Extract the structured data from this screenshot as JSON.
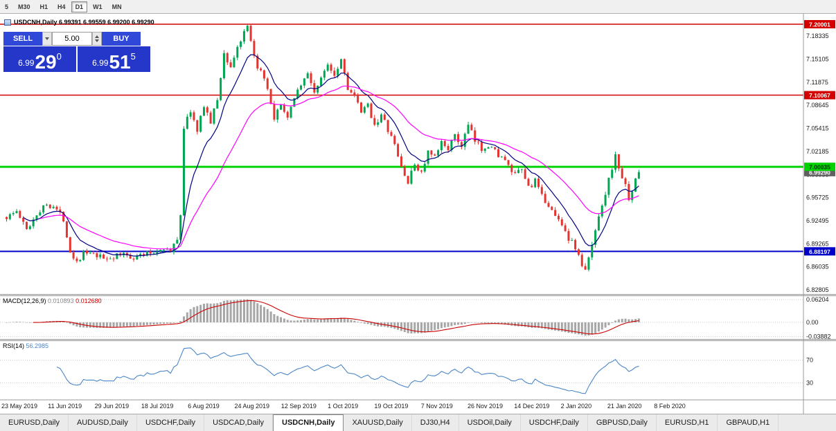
{
  "toolbar": {
    "timeframes": [
      {
        "label": "5",
        "active": false
      },
      {
        "label": "M30",
        "active": false
      },
      {
        "label": "H1",
        "active": false
      },
      {
        "label": "H4",
        "active": false
      },
      {
        "label": "D1",
        "active": true
      },
      {
        "label": "W1",
        "active": false
      },
      {
        "label": "MN",
        "active": false
      }
    ]
  },
  "chart": {
    "title_line": "USDCNH,Daily 6.99391 6.99559 6.99200 6.99290"
  },
  "trade_panel": {
    "sell_label": "SELL",
    "buy_label": "BUY",
    "volume": "5.00",
    "sell_price": {
      "prefix": "6.99",
      "big": "29",
      "sup": "0"
    },
    "buy_price": {
      "prefix": "6.99",
      "big": "51",
      "sup": "5"
    }
  },
  "indicators": {
    "macd_label": "MACD(12,26,9)",
    "macd_main": "0.010893",
    "macd_signal": "0.012680",
    "rsi_label": "RSI(14)",
    "rsi_value": "56.2985"
  },
  "chart_data": {
    "type": "candlestick",
    "symbol": "USDCNH",
    "timeframe": "Daily",
    "ohlc_display": [
      "6.99391",
      "6.99559",
      "6.99200",
      "6.99290"
    ],
    "last_close": 6.9929,
    "levels": [
      {
        "price": 7.20001,
        "label": "7.20001",
        "color": "#d40000",
        "width": 1.5,
        "text": "#ffffff"
      },
      {
        "price": 7.10067,
        "label": "7.10067",
        "color": "#d40000",
        "width": 1.5,
        "text": "#ffffff"
      },
      {
        "price": 7.00035,
        "label": "7.00035",
        "color": "#00d100",
        "width": 3,
        "text": "#00320a"
      },
      {
        "price": 6.88197,
        "label": "6.88197",
        "color": "#0000c8",
        "width": 2,
        "text": "#ffffff"
      }
    ],
    "current_price_badge": {
      "price": 6.9929,
      "label": "6.99290",
      "color": "#606060"
    },
    "y_ticks": [
      "7.18335",
      "7.15105",
      "7.11875",
      "7.08645",
      "7.05415",
      "7.02185",
      "6.98955",
      "6.95725",
      "6.92495",
      "6.89265",
      "6.86035",
      "6.82805"
    ],
    "y_tick_values": [
      7.18335,
      7.15105,
      7.11875,
      7.08645,
      7.05415,
      7.02185,
      6.98955,
      6.95725,
      6.92495,
      6.89265,
      6.86035,
      6.82805
    ],
    "x_labels": [
      "23 May 2019",
      "11 Jun 2019",
      "29 Jun 2019",
      "18 Jul 2019",
      "6 Aug 2019",
      "24 Aug 2019",
      "12 Sep 2019",
      "1 Oct 2019",
      "19 Oct 2019",
      "7 Nov 2019",
      "26 Nov 2019",
      "14 Dec 2019",
      "2 Jan 2020",
      "21 Jan 2020",
      "8 Feb 2020"
    ],
    "macd_axis": [
      "0.06204",
      "0.00",
      "-0.03882"
    ],
    "macd_axis_values": [
      0.06204,
      0,
      -0.03882
    ],
    "rsi_levels": [
      70,
      30
    ],
    "candle_count": 190,
    "seed": 1337,
    "price_path": [
      [
        0,
        6.93
      ],
      [
        3,
        6.938
      ],
      [
        6,
        6.912
      ],
      [
        9,
        6.935
      ],
      [
        12,
        6.948
      ],
      [
        14,
        6.946
      ],
      [
        17,
        6.928
      ],
      [
        19,
        6.882
      ],
      [
        21,
        6.868
      ],
      [
        23,
        6.88
      ],
      [
        26,
        6.876
      ],
      [
        29,
        6.872
      ],
      [
        32,
        6.874
      ],
      [
        35,
        6.878
      ],
      [
        38,
        6.874
      ],
      [
        41,
        6.878
      ],
      [
        44,
        6.88
      ],
      [
        47,
        6.888
      ],
      [
        49,
        6.88
      ],
      [
        51,
        6.9
      ],
      [
        52,
        6.935
      ],
      [
        53,
        7.055
      ],
      [
        55,
        7.08
      ],
      [
        57,
        7.048
      ],
      [
        59,
        7.088
      ],
      [
        61,
        7.062
      ],
      [
        63,
        7.095
      ],
      [
        65,
        7.158
      ],
      [
        67,
        7.14
      ],
      [
        69,
        7.168
      ],
      [
        71,
        7.186
      ],
      [
        72,
        7.195
      ],
      [
        74,
        7.152
      ],
      [
        76,
        7.132
      ],
      [
        78,
        7.108
      ],
      [
        80,
        7.063
      ],
      [
        82,
        7.09
      ],
      [
        84,
        7.065
      ],
      [
        86,
        7.1
      ],
      [
        88,
        7.116
      ],
      [
        90,
        7.13
      ],
      [
        92,
        7.106
      ],
      [
        94,
        7.122
      ],
      [
        96,
        7.146
      ],
      [
        98,
        7.13
      ],
      [
        100,
        7.152
      ],
      [
        102,
        7.112
      ],
      [
        104,
        7.098
      ],
      [
        106,
        7.076
      ],
      [
        108,
        7.086
      ],
      [
        110,
        7.06
      ],
      [
        112,
        7.072
      ],
      [
        114,
        7.052
      ],
      [
        116,
        7.03
      ],
      [
        118,
        7.0
      ],
      [
        120,
        6.978
      ],
      [
        122,
        7.004
      ],
      [
        124,
        6.992
      ],
      [
        126,
        7.02
      ],
      [
        128,
        7.012
      ],
      [
        130,
        7.034
      ],
      [
        132,
        7.028
      ],
      [
        134,
        7.042
      ],
      [
        136,
        7.03
      ],
      [
        138,
        7.058
      ],
      [
        140,
        7.036
      ],
      [
        142,
        7.026
      ],
      [
        144,
        7.032
      ],
      [
        146,
        7.022
      ],
      [
        148,
        7.014
      ],
      [
        150,
        7.0
      ],
      [
        152,
        6.988
      ],
      [
        154,
        6.996
      ],
      [
        156,
        6.972
      ],
      [
        158,
        6.98
      ],
      [
        160,
        6.958
      ],
      [
        162,
        6.948
      ],
      [
        164,
        6.93
      ],
      [
        166,
        6.922
      ],
      [
        168,
        6.9
      ],
      [
        170,
        6.888
      ],
      [
        172,
        6.862
      ],
      [
        173,
        6.854
      ],
      [
        175,
        6.89
      ],
      [
        177,
        6.934
      ],
      [
        179,
        6.964
      ],
      [
        181,
        7.0
      ],
      [
        182,
        7.014
      ],
      [
        184,
        6.986
      ],
      [
        186,
        6.958
      ],
      [
        187,
        6.968
      ],
      [
        188,
        6.98
      ],
      [
        189,
        6.993
      ]
    ],
    "colors": {
      "up": "#00a651",
      "down": "#e3342f",
      "ma_fast": "#000080",
      "ma_slow": "#ff00ff",
      "macd_hist": "#a6a6a6",
      "macd_signal": "#cc0000",
      "rsi": "#4a86c8"
    }
  },
  "bottom_tabs": {
    "items": [
      "EURUSD,Daily",
      "AUDUSD,Daily",
      "USDCHF,Daily",
      "USDCAD,Daily",
      "USDCNH,Daily",
      "XAUUSD,Daily",
      "DJ30,H4",
      "USDOil,Daily",
      "USDCHF,Daily",
      "GBPUSD,Daily",
      "EURUSD,H1",
      "GBPAUD,H1"
    ],
    "active_index": 4
  }
}
